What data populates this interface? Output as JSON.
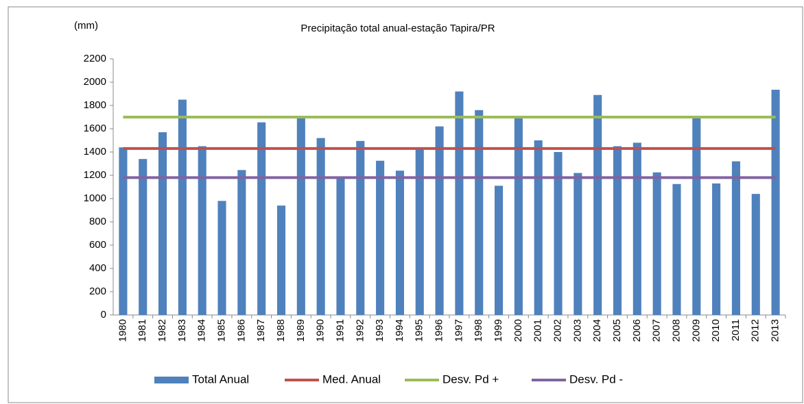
{
  "chart_data": {
    "type": "bar",
    "title": "Precipitação  total anual-estação Tapira/PR",
    "y_label": "(mm)",
    "categories": [
      "1980",
      "1981",
      "1982",
      "1983",
      "1984",
      "1985",
      "1986",
      "1987",
      "1988",
      "1989",
      "1990",
      "1991",
      "1992",
      "1993",
      "1994",
      "1995",
      "1996",
      "1997",
      "1998",
      "1999",
      "2000",
      "2001",
      "2002",
      "2003",
      "2004",
      "2005",
      "2006",
      "2007",
      "2008",
      "2009",
      "2010",
      "2011",
      "2012",
      "2013"
    ],
    "series": [
      {
        "name": "Total Anual",
        "type": "bar",
        "color": "#4f81bd",
        "values": [
          1440,
          1340,
          1570,
          1850,
          1450,
          980,
          1245,
          1655,
          940,
          1700,
          1520,
          1175,
          1495,
          1325,
          1240,
          1420,
          1620,
          1920,
          1760,
          1110,
          1700,
          1500,
          1400,
          1220,
          1890,
          1450,
          1480,
          1225,
          1125,
          1700,
          1130,
          1320,
          1040,
          1935
        ]
      },
      {
        "name": "Med. Anual",
        "type": "line",
        "color": "#c0504d",
        "values": [
          1430,
          1430,
          1430,
          1430,
          1430,
          1430,
          1430,
          1430,
          1430,
          1430,
          1430,
          1430,
          1430,
          1430,
          1430,
          1430,
          1430,
          1430,
          1430,
          1430,
          1430,
          1430,
          1430,
          1430,
          1430,
          1430,
          1430,
          1430,
          1430,
          1430,
          1430,
          1430,
          1430,
          1430
        ]
      },
      {
        "name": "Desv. Pd +",
        "type": "line",
        "color": "#9bbb59",
        "values": [
          1700,
          1700,
          1700,
          1700,
          1700,
          1700,
          1700,
          1700,
          1700,
          1700,
          1700,
          1700,
          1700,
          1700,
          1700,
          1700,
          1700,
          1700,
          1700,
          1700,
          1700,
          1700,
          1700,
          1700,
          1700,
          1700,
          1700,
          1700,
          1700,
          1700,
          1700,
          1700,
          1700,
          1700
        ]
      },
      {
        "name": "Desv. Pd -",
        "type": "line",
        "color": "#8064a2",
        "values": [
          1180,
          1180,
          1180,
          1180,
          1180,
          1180,
          1180,
          1180,
          1180,
          1180,
          1180,
          1180,
          1180,
          1180,
          1180,
          1180,
          1180,
          1180,
          1180,
          1180,
          1180,
          1180,
          1180,
          1180,
          1180,
          1180,
          1180,
          1180,
          1180,
          1180,
          1180,
          1180,
          1180,
          1180
        ]
      }
    ],
    "ylim": [
      0,
      2200
    ],
    "yticks": [
      0,
      200,
      400,
      600,
      800,
      1000,
      1200,
      1400,
      1600,
      1800,
      2000,
      2200
    ],
    "grid": false,
    "legend": "bottom"
  }
}
